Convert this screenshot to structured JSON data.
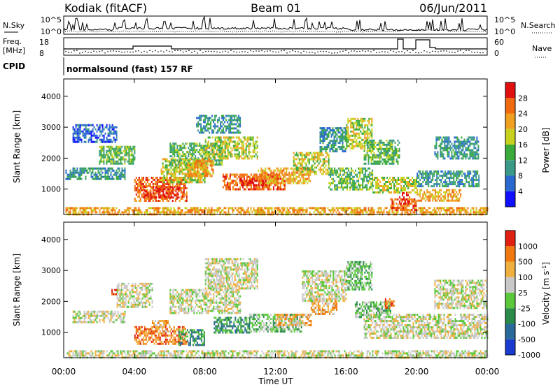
{
  "header": {
    "station": "Kodiak (fitACF)",
    "beam": "Beam 01",
    "date": "06/Jun/2011"
  },
  "top_panels": {
    "nsky_label": "N.Sky",
    "nsearch_label": "N.Search",
    "nsky_ticks": [
      "10^5",
      "10^0"
    ],
    "nsearch_ticks": [
      "10^5",
      "10^0"
    ],
    "freq_label_1": "Freq.",
    "freq_label_2": "[MHz]",
    "freq_ticks": [
      "18",
      "8"
    ],
    "nave_label": "Nave",
    "nave_ticks": [
      "60",
      "0"
    ],
    "cpid_label": "CPID",
    "cpid_text": "normalsound (fast) 157 RF"
  },
  "chart_data": [
    {
      "type": "heatmap",
      "name": "power-panel",
      "xlabel": "Time UT",
      "ylabel": "Slant Range [km]",
      "x_ticks": [
        "00:00",
        "04:00",
        "08:00",
        "12:00",
        "16:00",
        "20:00",
        "00:00"
      ],
      "xlim_hours": [
        0,
        24
      ],
      "y_ticks": [
        "1000",
        "2000",
        "3000",
        "4000"
      ],
      "ylim_km": [
        180,
        4560
      ],
      "colorbar": {
        "label": "Power [dB]",
        "ticks": [
          "4",
          "8",
          "12",
          "16",
          "20",
          "24",
          "28"
        ],
        "colors": [
          "#1010ff",
          "#2a6ad0",
          "#3a9a8a",
          "#3aaa3a",
          "#c8d21e",
          "#f0a020",
          "#f06a10",
          "#e01010"
        ]
      },
      "regions": [
        {
          "t0": 0.1,
          "t1": 24.0,
          "r0": 200,
          "r1": 420,
          "level": 5
        },
        {
          "t0": 0.1,
          "t1": 3.5,
          "r0": 1300,
          "r1": 1700,
          "level": 2
        },
        {
          "t0": 2.0,
          "t1": 4.0,
          "r0": 1800,
          "r1": 2400,
          "level": 3
        },
        {
          "t0": 0.5,
          "t1": 3.0,
          "r0": 2500,
          "r1": 3100,
          "level": 1
        },
        {
          "t0": 4.0,
          "t1": 7.0,
          "r0": 600,
          "r1": 1400,
          "level": 6
        },
        {
          "t0": 4.5,
          "t1": 6.5,
          "r0": 700,
          "r1": 1100,
          "level": 7
        },
        {
          "t0": 5.5,
          "t1": 8.0,
          "r0": 1200,
          "r1": 2000,
          "level": 4
        },
        {
          "t0": 6.0,
          "t1": 9.0,
          "r0": 1800,
          "r1": 2500,
          "level": 3
        },
        {
          "t0": 7.0,
          "t1": 8.5,
          "r0": 1400,
          "r1": 2000,
          "level": 5
        },
        {
          "t0": 8.0,
          "t1": 11.0,
          "r0": 2000,
          "r1": 2700,
          "level": 4
        },
        {
          "t0": 7.5,
          "t1": 10.0,
          "r0": 2800,
          "r1": 3400,
          "level": 2
        },
        {
          "t0": 9.0,
          "t1": 12.5,
          "r0": 1000,
          "r1": 1500,
          "level": 6
        },
        {
          "t0": 10.0,
          "t1": 11.5,
          "r0": 1100,
          "r1": 1300,
          "level": 7
        },
        {
          "t0": 11.0,
          "t1": 14.0,
          "r0": 1200,
          "r1": 1700,
          "level": 5
        },
        {
          "t0": 13.0,
          "t1": 15.0,
          "r0": 1500,
          "r1": 2200,
          "level": 4
        },
        {
          "t0": 14.5,
          "t1": 16.0,
          "r0": 2200,
          "r1": 3000,
          "level": 2
        },
        {
          "t0": 15.0,
          "t1": 17.5,
          "r0": 1000,
          "r1": 1700,
          "level": 3
        },
        {
          "t0": 16.0,
          "t1": 17.5,
          "r0": 2300,
          "r1": 3300,
          "level": 4
        },
        {
          "t0": 17.0,
          "t1": 19.0,
          "r0": 1800,
          "r1": 2600,
          "level": 3
        },
        {
          "t0": 17.5,
          "t1": 20.0,
          "r0": 900,
          "r1": 1400,
          "level": 4
        },
        {
          "t0": 18.5,
          "t1": 20.0,
          "r0": 300,
          "r1": 700,
          "level": 6
        },
        {
          "t0": 19.0,
          "t1": 19.6,
          "r0": 500,
          "r1": 900,
          "level": 7
        },
        {
          "t0": 20.0,
          "t1": 22.5,
          "r0": 600,
          "r1": 1000,
          "level": 5
        },
        {
          "t0": 20.0,
          "t1": 23.5,
          "r0": 1100,
          "r1": 1600,
          "level": 2
        },
        {
          "t0": 21.0,
          "t1": 23.5,
          "r0": 2000,
          "r1": 2700,
          "level": 2
        }
      ]
    },
    {
      "type": "heatmap",
      "name": "velocity-panel",
      "xlabel": "Time UT",
      "ylabel": "Slant Range [km]",
      "x_ticks": [
        "00:00",
        "04:00",
        "08:00",
        "12:00",
        "16:00",
        "20:00",
        "00:00"
      ],
      "xlim_hours": [
        0,
        24
      ],
      "y_ticks": [
        "1000",
        "2000",
        "3000",
        "4000"
      ],
      "ylim_km": [
        180,
        4560
      ],
      "colorbar": {
        "label": "Velocity [m s",
        "label_sup": "-1",
        "label_end": "]",
        "ticks": [
          "1000",
          "500",
          "100",
          "25",
          "-25",
          "-100",
          "-500",
          "-1000"
        ],
        "colors": [
          "#1a3ad0",
          "#2a6a9a",
          "#2a8a4a",
          "#5ac83a",
          "#c8c8c8",
          "#f0b040",
          "#f07a10",
          "#e02010"
        ]
      },
      "regions": [
        {
          "t0": 0.1,
          "t1": 24.0,
          "r0": 200,
          "r1": 420,
          "level": 4
        },
        {
          "t0": 0.5,
          "t1": 3.5,
          "r0": 1300,
          "r1": 1700,
          "level": 4
        },
        {
          "t0": 3.0,
          "t1": 5.0,
          "r0": 1800,
          "r1": 2600,
          "level": 4
        },
        {
          "t0": 2.7,
          "t1": 3.0,
          "r0": 2200,
          "r1": 2400,
          "level": 7
        },
        {
          "t0": 4.0,
          "t1": 7.0,
          "r0": 600,
          "r1": 1200,
          "level": 6
        },
        {
          "t0": 5.0,
          "t1": 6.0,
          "r0": 1000,
          "r1": 1400,
          "level": 5
        },
        {
          "t0": 6.5,
          "t1": 8.0,
          "r0": 600,
          "r1": 1100,
          "level": 2
        },
        {
          "t0": 6.0,
          "t1": 10.0,
          "r0": 1600,
          "r1": 2400,
          "level": 4
        },
        {
          "t0": 8.0,
          "t1": 11.0,
          "r0": 2400,
          "r1": 3400,
          "level": 4
        },
        {
          "t0": 8.5,
          "t1": 10.5,
          "r0": 1000,
          "r1": 1500,
          "level": 2
        },
        {
          "t0": 10.5,
          "t1": 13.5,
          "r0": 1000,
          "r1": 1600,
          "level": 3
        },
        {
          "t0": 12.0,
          "t1": 14.0,
          "r0": 1200,
          "r1": 1600,
          "level": 5
        },
        {
          "t0": 14.0,
          "t1": 15.5,
          "r0": 1600,
          "r1": 2100,
          "level": 5
        },
        {
          "t0": 13.5,
          "t1": 16.0,
          "r0": 2000,
          "r1": 3000,
          "level": 4
        },
        {
          "t0": 16.0,
          "t1": 17.5,
          "r0": 2400,
          "r1": 3300,
          "level": 3
        },
        {
          "t0": 16.5,
          "t1": 18.5,
          "r0": 1500,
          "r1": 2000,
          "level": 3
        },
        {
          "t0": 18.2,
          "t1": 18.7,
          "r0": 1800,
          "r1": 2100,
          "level": 6
        },
        {
          "t0": 17.0,
          "t1": 24.0,
          "r0": 800,
          "r1": 1600,
          "level": 4
        },
        {
          "t0": 21.0,
          "t1": 24.0,
          "r0": 1800,
          "r1": 2700,
          "level": 4
        }
      ]
    }
  ]
}
